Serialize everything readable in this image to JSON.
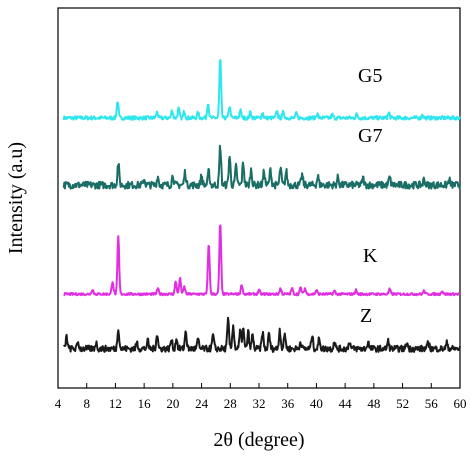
{
  "chart_data": {
    "type": "line",
    "title": "",
    "xlabel": "2θ (degree)",
    "ylabel": "Intensity (a.u)",
    "xlim": [
      4,
      60
    ],
    "xticks": [
      4,
      8,
      12,
      16,
      20,
      24,
      28,
      32,
      36,
      40,
      44,
      48,
      52,
      56,
      60
    ],
    "yticks_shown": false,
    "grid": false,
    "legend": "inline labels right of each trace",
    "series": [
      {
        "name": "G5",
        "color": "#2ee6ee",
        "baseline": 0.18,
        "peaks": [
          [
            12.3,
            1.0
          ],
          [
            17.8,
            0.35
          ],
          [
            19.9,
            0.45
          ],
          [
            20.8,
            0.55
          ],
          [
            21.6,
            0.4
          ],
          [
            23.5,
            0.3
          ],
          [
            24.9,
            0.9
          ],
          [
            26.6,
            3.5
          ],
          [
            27.9,
            0.7
          ],
          [
            29.4,
            0.45
          ],
          [
            30.8,
            0.35
          ],
          [
            32.5,
            0.3
          ],
          [
            34.5,
            0.4
          ],
          [
            35.4,
            0.35
          ],
          [
            37.2,
            0.25
          ],
          [
            40.1,
            0.25
          ],
          [
            42.2,
            0.2
          ],
          [
            45.6,
            0.2
          ],
          [
            50.1,
            0.3
          ],
          [
            54.8,
            0.2
          ]
        ]
      },
      {
        "name": "G7",
        "color": "#1a6e66",
        "baseline": 0.35,
        "peaks": [
          [
            12.4,
            1.3
          ],
          [
            16.0,
            0.35
          ],
          [
            17.9,
            0.5
          ],
          [
            20.0,
            0.6
          ],
          [
            21.7,
            0.75
          ],
          [
            24.0,
            0.55
          ],
          [
            25.0,
            0.8
          ],
          [
            26.6,
            2.3
          ],
          [
            27.9,
            1.7
          ],
          [
            28.8,
            1.1
          ],
          [
            29.8,
            1.3
          ],
          [
            30.9,
            0.9
          ],
          [
            32.7,
            0.8
          ],
          [
            33.6,
            0.9
          ],
          [
            35.0,
            1.0
          ],
          [
            35.8,
            0.8
          ],
          [
            38.0,
            0.6
          ],
          [
            40.2,
            0.5
          ],
          [
            43.0,
            0.45
          ],
          [
            46.5,
            0.4
          ],
          [
            50.2,
            0.45
          ],
          [
            55.0,
            0.35
          ],
          [
            58.5,
            0.3
          ]
        ]
      },
      {
        "name": "K",
        "color": "#e22ee2",
        "baseline": 0.12,
        "peaks": [
          [
            8.8,
            0.3
          ],
          [
            11.6,
            0.8
          ],
          [
            12.4,
            3.6
          ],
          [
            17.9,
            0.35
          ],
          [
            20.4,
            0.8
          ],
          [
            21.0,
            1.0
          ],
          [
            21.6,
            0.45
          ],
          [
            25.0,
            3.2
          ],
          [
            26.6,
            4.5
          ],
          [
            29.6,
            0.6
          ],
          [
            32.0,
            0.25
          ],
          [
            35.0,
            0.35
          ],
          [
            36.6,
            0.35
          ],
          [
            37.8,
            0.4
          ],
          [
            38.4,
            0.35
          ],
          [
            40.0,
            0.25
          ],
          [
            42.5,
            0.2
          ],
          [
            45.5,
            0.25
          ],
          [
            50.2,
            0.3
          ],
          [
            55.0,
            0.2
          ],
          [
            57.5,
            0.2
          ]
        ]
      },
      {
        "name": "Z",
        "color": "#1a1a1a",
        "baseline": 0.35,
        "peaks": [
          [
            5.2,
            0.8
          ],
          [
            6.8,
            0.4
          ],
          [
            9.3,
            0.4
          ],
          [
            12.4,
            1.4
          ],
          [
            15.0,
            0.4
          ],
          [
            16.5,
            0.5
          ],
          [
            17.8,
            1.0
          ],
          [
            19.8,
            0.6
          ],
          [
            20.5,
            0.7
          ],
          [
            21.8,
            1.2
          ],
          [
            23.5,
            0.6
          ],
          [
            25.6,
            0.9
          ],
          [
            27.7,
            1.9
          ],
          [
            28.4,
            1.6
          ],
          [
            29.4,
            1.2
          ],
          [
            29.8,
            1.3
          ],
          [
            30.5,
            1.1
          ],
          [
            31.1,
            0.9
          ],
          [
            32.5,
            1.1
          ],
          [
            33.4,
            1.0
          ],
          [
            34.9,
            1.3
          ],
          [
            35.6,
            1.0
          ],
          [
            37.8,
            0.5
          ],
          [
            39.4,
            0.9
          ],
          [
            40.4,
            0.7
          ],
          [
            42.5,
            0.5
          ],
          [
            44.6,
            0.5
          ],
          [
            47.2,
            0.45
          ],
          [
            50.0,
            0.5
          ],
          [
            52.6,
            0.4
          ],
          [
            55.6,
            0.4
          ],
          [
            58.2,
            0.4
          ]
        ]
      }
    ]
  }
}
